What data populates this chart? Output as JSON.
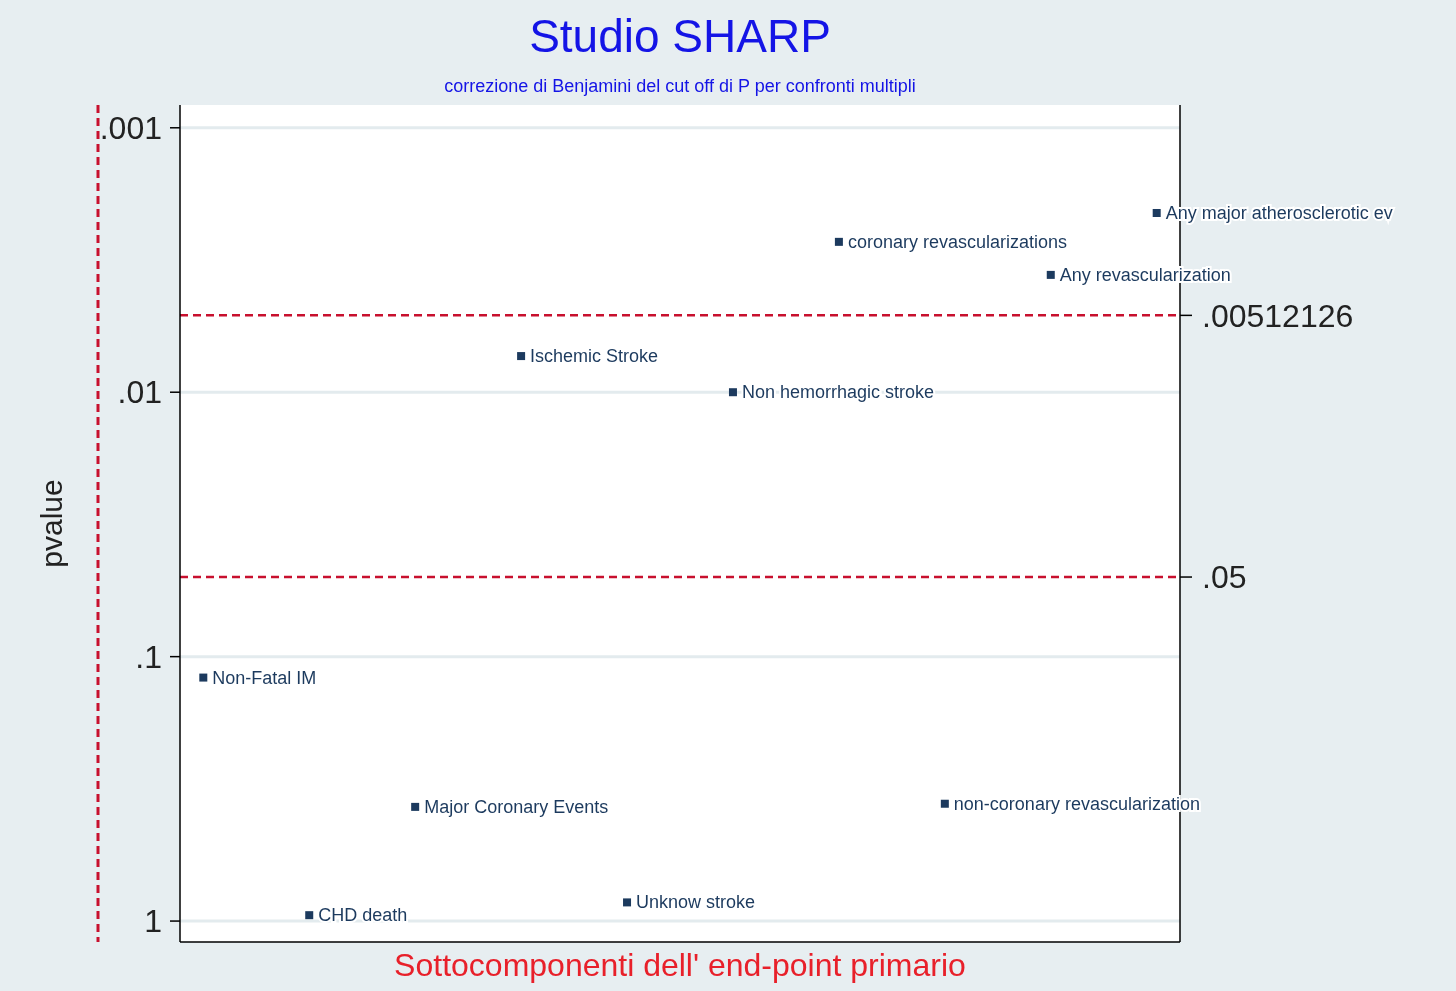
{
  "chart_data": {
    "type": "scatter",
    "title": "Studio SHARP",
    "subtitle": "correzione di Benjamini del cut off di P per confronti multipli",
    "xlabel": "Sottocomponenti dell' end-point primario",
    "ylabel": "pvalue",
    "categories": [
      null,
      null,
      null,
      null,
      null,
      null,
      null,
      null,
      null,
      null
    ],
    "series": [
      {
        "color": "#1c3a5e",
        "values": [
          0.12,
          0.95,
          0.37,
          0.0073,
          0.85,
          0.01,
          0.0027,
          0.36,
          0.0036,
          0.0021
        ],
        "value_labels": [
          "Non-Fatal IM",
          "CHD death",
          "Major Coronary Events",
          "Ischemic Stroke",
          "Unknow stroke",
          "Non hemorrhagic stroke",
          "coronary revascularizations",
          "non-coronary revascularization",
          "Any revascularization",
          "Any major atherosclerotic ev"
        ]
      }
    ],
    "log": "y",
    "ylim": [
      1.2,
      0.00082
    ],
    "yticks": [
      {
        "value": 0.001,
        "label": ".001"
      },
      {
        "value": 0.01,
        "label": ".01"
      },
      {
        "value": 0.1,
        "label": ".1"
      },
      1
    ],
    "ref_lines": [
      {
        "axis": "y",
        "value": 0.00512126,
        "label": ".00512126",
        "color": "#c8102e",
        "line_style": "dashed"
      },
      {
        "axis": "y",
        "value": 0.05,
        "label": ".05",
        "color": "#c8102e",
        "line_style": "dashed"
      }
    ],
    "grid": "y",
    "marker": "square"
  }
}
